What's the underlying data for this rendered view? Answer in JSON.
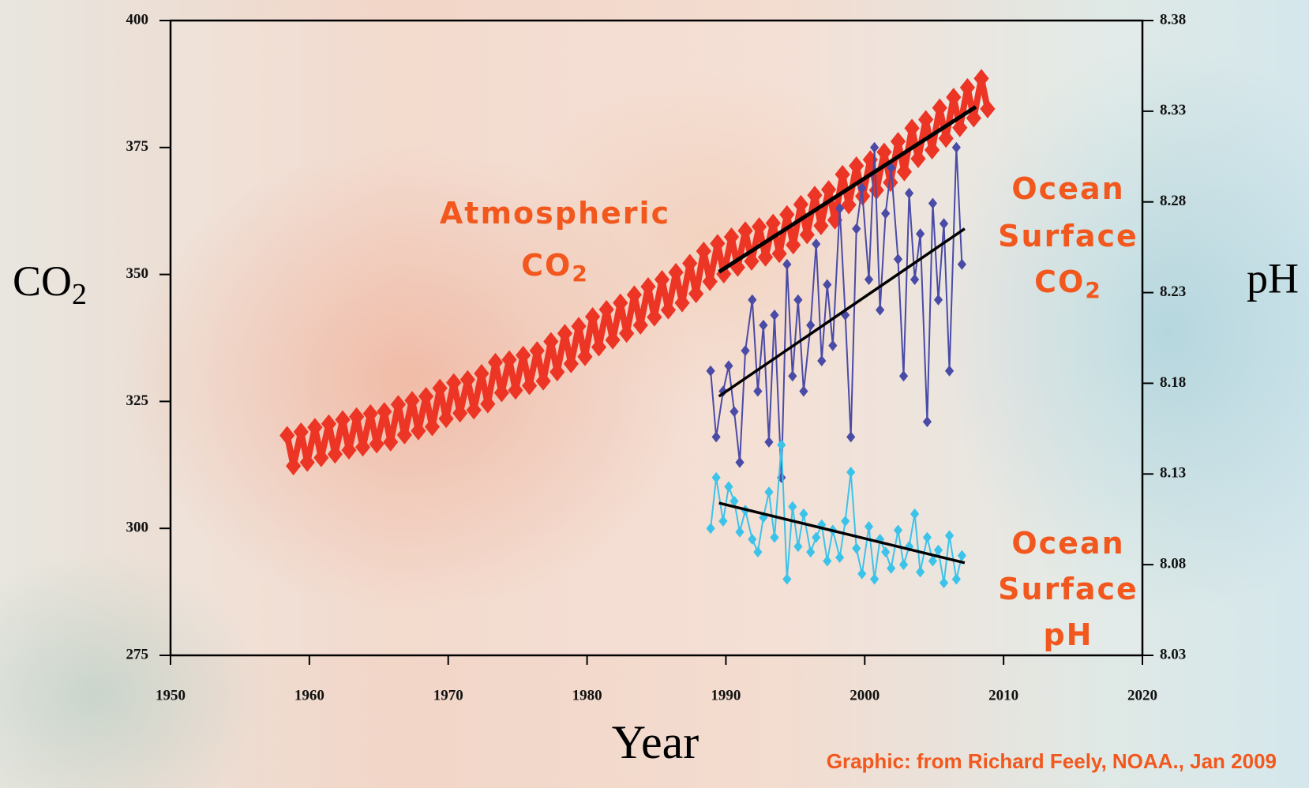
{
  "chart_data": {
    "type": "line",
    "xlabel": "Year",
    "ylabel": "CO",
    "ylabel_sub": "2",
    "y2label": "pH",
    "source": "Graphic: from Richard Feely, NOAA., Jan 2009",
    "xlim": [
      1950,
      2020
    ],
    "xticks": [
      1950,
      1960,
      1970,
      1980,
      1990,
      2000,
      2010,
      2020
    ],
    "ylim": [
      275,
      400
    ],
    "yticks": [
      275,
      300,
      325,
      350,
      375,
      400
    ],
    "y2lim": [
      8.03,
      8.38
    ],
    "y2ticks": [
      8.03,
      8.08,
      8.13,
      8.18,
      8.23,
      8.28,
      8.33,
      8.38
    ],
    "annotations": [
      {
        "lines": [
          "Atmospheric",
          "CO"
        ],
        "sub": "2",
        "color": "#f2581e"
      },
      {
        "lines": [
          "Ocean",
          "Surface",
          "CO"
        ],
        "sub": "2",
        "color": "#f2581e"
      },
      {
        "lines": [
          "Ocean",
          "Surface",
          "pH"
        ],
        "color": "#f2581e"
      }
    ],
    "series": [
      {
        "color": "#ec3524",
        "style": "large-diamonds",
        "x": [
          1958.4,
          1958.85,
          1959.4,
          1959.85,
          1960.4,
          1960.85,
          1961.4,
          1961.85,
          1962.4,
          1962.85,
          1963.4,
          1963.85,
          1964.4,
          1964.85,
          1965.4,
          1965.85,
          1966.4,
          1966.85,
          1967.4,
          1967.85,
          1968.4,
          1968.85,
          1969.4,
          1969.85,
          1970.4,
          1970.85,
          1971.4,
          1971.85,
          1972.4,
          1972.85,
          1973.4,
          1973.85,
          1974.4,
          1974.85,
          1975.4,
          1975.85,
          1976.4,
          1976.85,
          1977.4,
          1977.85,
          1978.4,
          1978.85,
          1979.4,
          1979.85,
          1980.4,
          1980.85,
          1981.4,
          1981.85,
          1982.4,
          1982.85,
          1983.4,
          1983.85,
          1984.4,
          1984.85,
          1985.4,
          1985.85,
          1986.4,
          1986.85,
          1987.4,
          1987.85,
          1988.4,
          1988.85,
          1989.4,
          1989.85,
          1990.4,
          1990.85,
          1991.4,
          1991.85,
          1992.4,
          1992.85,
          1993.4,
          1993.85,
          1994.4,
          1994.85,
          1995.4,
          1995.85,
          1996.4,
          1996.85,
          1997.4,
          1997.85,
          1998.4,
          1998.85,
          1999.4,
          1999.85,
          2000.4,
          2000.85,
          2001.4,
          2001.85,
          2002.4,
          2002.85,
          2003.4,
          2003.85,
          2004.4,
          2004.85,
          2005.4,
          2005.85,
          2006.4,
          2006.85,
          2007.4,
          2007.85,
          2008.4,
          2008.85
        ],
        "values": [
          318.3,
          312.3,
          319,
          313,
          319.9,
          313.9,
          320.6,
          314.6,
          321.4,
          315.4,
          322,
          316,
          322.6,
          316.6,
          323,
          317,
          324.4,
          318.4,
          325.2,
          319.2,
          326,
          320,
          327.6,
          321.6,
          328.7,
          322.7,
          329.3,
          323.3,
          330.5,
          324.5,
          332.7,
          326.7,
          333.2,
          327.2,
          334.1,
          328.1,
          335,
          329,
          336.8,
          330.8,
          338.4,
          332.4,
          339.8,
          333.8,
          341.7,
          335.7,
          343.1,
          337.1,
          344.4,
          338.4,
          346,
          340,
          347.6,
          341.6,
          349,
          343,
          350.4,
          344.4,
          352.2,
          346.2,
          354.6,
          348.6,
          356.1,
          350.1,
          357.4,
          351.4,
          358.6,
          352.6,
          359.4,
          353.4,
          360.1,
          354.1,
          361.8,
          355.8,
          363.8,
          357.8,
          365.6,
          359.6,
          366.7,
          360.7,
          369.7,
          363.7,
          371.4,
          365.4,
          372.6,
          366.6,
          374.1,
          368.1,
          376.2,
          370.2,
          378.8,
          372.8,
          380.5,
          374.5,
          382.8,
          376.8,
          384.9,
          378.9,
          386.8,
          380.8,
          388.6,
          382.6
        ]
      },
      {
        "color": "#4a4ba6",
        "style": "diamonds-line",
        "x": [
          1988.9,
          1989.3,
          1989.8,
          1990.2,
          1990.6,
          1991.0,
          1991.4,
          1991.9,
          1992.3,
          1992.7,
          1993.1,
          1993.5,
          1994.0,
          1994.4,
          1994.8,
          1995.2,
          1995.6,
          1996.1,
          1996.5,
          1996.9,
          1997.3,
          1997.7,
          1998.2,
          1998.6,
          1999.0,
          1999.4,
          1999.8,
          2000.3,
          2000.7,
          2001.1,
          2001.5,
          2001.9,
          2002.4,
          2002.8,
          2003.2,
          2003.6,
          2004.0,
          2004.5,
          2004.9,
          2005.3,
          2005.7,
          2006.1,
          2006.6,
          2007.0
        ],
        "values": [
          331,
          318,
          327,
          332,
          323,
          313,
          335,
          345,
          327,
          340,
          317,
          342,
          310,
          352,
          330,
          345,
          327,
          340,
          356,
          333,
          348,
          336,
          363,
          342,
          318,
          359,
          367,
          349,
          375,
          343,
          362,
          371,
          353,
          330,
          366,
          349,
          358,
          321,
          364,
          345,
          360,
          331,
          375,
          352
        ]
      },
      {
        "color": "#3cc3ea",
        "style": "diamonds-line",
        "axis": "y2",
        "x": [
          1988.9,
          1989.3,
          1989.8,
          1990.2,
          1990.6,
          1991.0,
          1991.4,
          1991.9,
          1992.3,
          1992.7,
          1993.1,
          1993.5,
          1994.0,
          1994.4,
          1994.8,
          1995.2,
          1995.6,
          1996.1,
          1996.5,
          1996.9,
          1997.3,
          1997.7,
          1998.2,
          1998.6,
          1999.0,
          1999.4,
          1999.8,
          2000.3,
          2000.7,
          2001.1,
          2001.5,
          2001.9,
          2002.4,
          2002.8,
          2003.2,
          2003.6,
          2004.0,
          2004.5,
          2004.9,
          2005.3,
          2005.7,
          2006.1,
          2006.6,
          2007.0
        ],
        "values": [
          8.1,
          8.128,
          8.104,
          8.123,
          8.115,
          8.098,
          8.11,
          8.094,
          8.087,
          8.106,
          8.12,
          8.095,
          8.146,
          8.072,
          8.112,
          8.09,
          8.108,
          8.087,
          8.095,
          8.102,
          8.082,
          8.099,
          8.084,
          8.104,
          8.131,
          8.089,
          8.075,
          8.101,
          8.072,
          8.094,
          8.087,
          8.078,
          8.099,
          8.08,
          8.09,
          8.108,
          8.076,
          8.095,
          8.082,
          8.088,
          8.07,
          8.096,
          8.072,
          8.085
        ]
      },
      {
        "color": "#000000",
        "style": "trend-bold",
        "x": [
          1989.5,
          2008
        ],
        "values": [
          350.5,
          383
        ]
      },
      {
        "color": "#000000",
        "style": "trend",
        "x": [
          1989.5,
          2007.2
        ],
        "values": [
          326,
          359
        ]
      },
      {
        "color": "#000000",
        "style": "trend",
        "axis": "y2",
        "x": [
          1989.5,
          2007.2
        ],
        "values": [
          8.114,
          8.081
        ]
      }
    ]
  }
}
